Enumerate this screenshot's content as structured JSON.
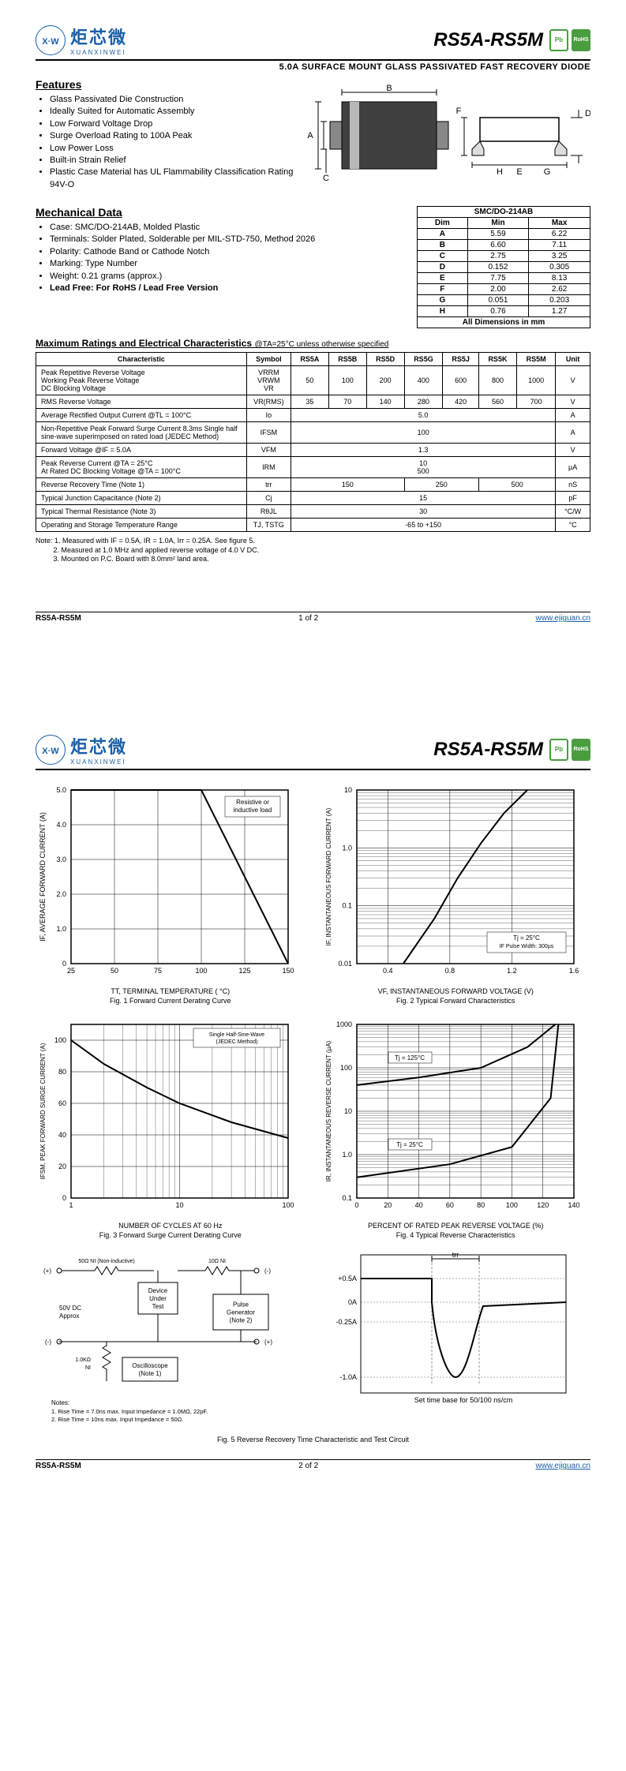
{
  "header": {
    "logo_cn": "炬芯微",
    "logo_en": "XUANXINWEI",
    "part_number": "RS5A-RS5M",
    "badge_pb": "Pb",
    "badge_rohs": "RoHS"
  },
  "description": "5.0A SURFACE MOUNT GLASS PASSIVATED FAST RECOVERY DIODE",
  "sections": {
    "features_title": "Features",
    "features": [
      "Glass Passivated Die Construction",
      "Ideally Suited for Automatic Assembly",
      "Low Forward Voltage Drop",
      "Surge Overload Rating to 100A Peak",
      "Low Power Loss",
      "Built-in Strain Relief",
      "Plastic Case Material has UL Flammability Classification Rating 94V-O"
    ],
    "mech_title": "Mechanical Data",
    "mech_items": [
      "Case: SMC/DO-214AB, Molded Plastic",
      "Terminals: Solder Plated, Solderable per MIL-STD-750, Method 2026",
      "Polarity: Cathode Band or Cathode Notch",
      "Marking: Type Number",
      "Weight: 0.21 grams (approx.)",
      "Lead Free: For RoHS / Lead Free Version"
    ],
    "ratings_title": "Maximum Ratings and Electrical Characteristics",
    "ratings_subtitle": "@TA=25°C unless otherwise specified"
  },
  "pkg_dims": {
    "labels": {
      "A": "A",
      "B": "B",
      "C": "C",
      "D": "D",
      "E": "E",
      "F": "F",
      "G": "G",
      "H": "H"
    }
  },
  "dim_table": {
    "header_title": "SMC/DO-214AB",
    "cols": [
      "Dim",
      "Min",
      "Max"
    ],
    "rows": [
      [
        "A",
        "5.59",
        "6.22"
      ],
      [
        "B",
        "6.60",
        "7.11"
      ],
      [
        "C",
        "2.75",
        "3.25"
      ],
      [
        "D",
        "0.152",
        "0.305"
      ],
      [
        "E",
        "7.75",
        "8.13"
      ],
      [
        "F",
        "2.00",
        "2.62"
      ],
      [
        "G",
        "0.051",
        "0.203"
      ],
      [
        "H",
        "0.76",
        "1.27"
      ]
    ],
    "footer": "All Dimensions in mm"
  },
  "ratings_table": {
    "headers": [
      "Characteristic",
      "Symbol",
      "RS5A",
      "RS5B",
      "RS5D",
      "RS5G",
      "RS5J",
      "RS5K",
      "RS5M",
      "Unit"
    ],
    "rows": [
      {
        "char": "Peak Repetitive Reverse Voltage\nWorking Peak Reverse Voltage\nDC Blocking Voltage",
        "symbol": "VRRM\nVRWM\nVR",
        "vals": [
          "50",
          "100",
          "200",
          "400",
          "600",
          "800",
          "1000"
        ],
        "unit": "V"
      },
      {
        "char": "RMS Reverse Voltage",
        "symbol": "VR(RMS)",
        "vals": [
          "35",
          "70",
          "140",
          "280",
          "420",
          "560",
          "700"
        ],
        "unit": "V"
      },
      {
        "char": "Average Rectified Output Current    @TL = 100°C",
        "symbol": "Io",
        "span": "5.0",
        "unit": "A"
      },
      {
        "char": "Non-Repetitive Peak Forward Surge Current 8.3ms Single half sine-wave superimposed on rated load (JEDEC Method)",
        "symbol": "IFSM",
        "span": "100",
        "unit": "A"
      },
      {
        "char": "Forward Voltage                              @IF = 5.0A",
        "symbol": "VFM",
        "span": "1.3",
        "unit": "V"
      },
      {
        "char": "Peak Reverse Current              @TA = 25°C\nAt Rated DC Blocking Voltage    @TA = 100°C",
        "symbol": "IRM",
        "span": "10\n500",
        "unit": "µA"
      },
      {
        "char": "Reverse Recovery Time (Note 1)",
        "symbol": "trr",
        "spans": [
          {
            "c": 3,
            "v": "150"
          },
          {
            "c": 2,
            "v": "250"
          },
          {
            "c": 2,
            "v": "500"
          }
        ],
        "unit": "nS"
      },
      {
        "char": "Typical Junction Capacitance (Note 2)",
        "symbol": "Cj",
        "span": "15",
        "unit": "pF"
      },
      {
        "char": "Typical Thermal Resistance (Note 3)",
        "symbol": "RθJL",
        "span": "30",
        "unit": "°C/W"
      },
      {
        "char": "Operating and Storage Temperature Range",
        "symbol": "TJ, TSTG",
        "span": "-65 to +150",
        "unit": "°C"
      }
    ]
  },
  "notes": {
    "prefix": "Note:",
    "items": [
      "1. Measured with IF = 0.5A, IR = 1.0A, Irr = 0.25A. See figure 5.",
      "2. Measured at 1.0 MHz and applied reverse voltage of 4.0 V DC.",
      "3. Mounted on P.C. Board with 8.0mm² land area."
    ]
  },
  "footer1": {
    "part": "RS5A-RS5M",
    "page": "1 of 2",
    "url": "www.ejiguan.cn"
  },
  "footer2": {
    "part": "RS5A-RS5M",
    "page": "2 of 2",
    "url": "www.ejiguan.cn"
  },
  "charts": {
    "fig1": {
      "caption": "Fig. 1  Forward Current Derating Curve",
      "xlabel": "TT, TERMINAL TEMPERATURE ( °C)",
      "ylabel": "IF, AVERAGE FORWARD CURRENT (A)",
      "annotation": "Resistive or\ninductive load",
      "xticks": [
        "25",
        "50",
        "75",
        "100",
        "125",
        "150"
      ],
      "yticks": [
        "0",
        "1.0",
        "2.0",
        "3.0",
        "4.0",
        "5.0"
      ],
      "line": [
        [
          25,
          5.0
        ],
        [
          100,
          5.0
        ],
        [
          150,
          0
        ]
      ],
      "grid_color": "#000000"
    },
    "fig2": {
      "caption": "Fig. 2  Typical Forward Characteristics",
      "xlabel": "VF, INSTANTANEOUS FORWARD VOLTAGE (V)",
      "ylabel": "IF, INSTANTANEOUS FORWARD CURRENT (A)",
      "annotation": "Tj = 25°C\nIF Pulse Width: 300µs",
      "xticks": [
        "0.4",
        "0.8",
        "1.2",
        "1.6"
      ],
      "yticks_log": [
        "0.01",
        "0.1",
        "1.0",
        "10"
      ],
      "curve": [
        [
          0.5,
          0.01
        ],
        [
          0.7,
          0.06
        ],
        [
          0.85,
          0.3
        ],
        [
          1.0,
          1.2
        ],
        [
          1.15,
          4
        ],
        [
          1.3,
          10
        ]
      ],
      "grid_color": "#000000"
    },
    "fig3": {
      "caption": "Fig. 3  Forward Surge Current Derating Curve",
      "xlabel": "NUMBER OF CYCLES AT 60 Hz",
      "ylabel": "IFSM, PEAK FORWARD SURGE CURRENT (A)",
      "annotation": "Single Half-Sine-Wave\n(JEDEC Method)",
      "xticks_log": [
        "1",
        "10",
        "100"
      ],
      "yticks": [
        "0",
        "20",
        "40",
        "60",
        "80",
        "100"
      ],
      "curve": [
        [
          1,
          100
        ],
        [
          2,
          85
        ],
        [
          5,
          70
        ],
        [
          10,
          60
        ],
        [
          30,
          48
        ],
        [
          100,
          38
        ]
      ],
      "grid_color": "#000000"
    },
    "fig4": {
      "caption": "Fig. 4  Typical Reverse Characteristics",
      "xlabel": "PERCENT OF RATED PEAK REVERSE VOLTAGE (%)",
      "ylabel": "IR, INSTANTANEOUS REVERSE CURRENT (µA)",
      "annot_hot": "Tj = 125°C",
      "annot_cold": "Tj = 25°C",
      "xticks": [
        "0",
        "20",
        "40",
        "60",
        "80",
        "100",
        "120",
        "140"
      ],
      "yticks_log": [
        "0.1",
        "1.0",
        "10",
        "100",
        "1000"
      ],
      "curve_hot": [
        [
          0,
          40
        ],
        [
          40,
          60
        ],
        [
          80,
          100
        ],
        [
          110,
          300
        ],
        [
          128,
          1000
        ]
      ],
      "curve_cold": [
        [
          0,
          0.3
        ],
        [
          60,
          0.6
        ],
        [
          100,
          1.5
        ],
        [
          125,
          20
        ],
        [
          130,
          1000
        ]
      ],
      "grid_color": "#000000"
    },
    "fig5": {
      "caption": "Fig. 5  Reverse Recovery Time Characteristic and Test Circuit",
      "circuit": {
        "r1": "50Ω NI (Non-inductive)",
        "r2": "10Ω NI",
        "dut": "Device\nUnder\nTest",
        "src": "50V DC\nApprox",
        "r3": "1.0KΩ\nNI",
        "scope": "Oscilloscope\n(Note 1)",
        "pg": "Pulse\nGenerator\n(Note 2)",
        "notes_title": "Notes:",
        "note1": "1. Rise Time = 7.0ns max. Input Impedance = 1.0MΩ, 22pF.",
        "note2": "2. Rise Time = 10ns max. Input Impedance = 50Ω."
      },
      "waveform": {
        "y_labels": [
          "+0.5A",
          "0A",
          "-0.25A",
          "-1.0A"
        ],
        "trr_label": "trr",
        "timebase": "Set time base for 50/100 ns/cm"
      }
    }
  }
}
